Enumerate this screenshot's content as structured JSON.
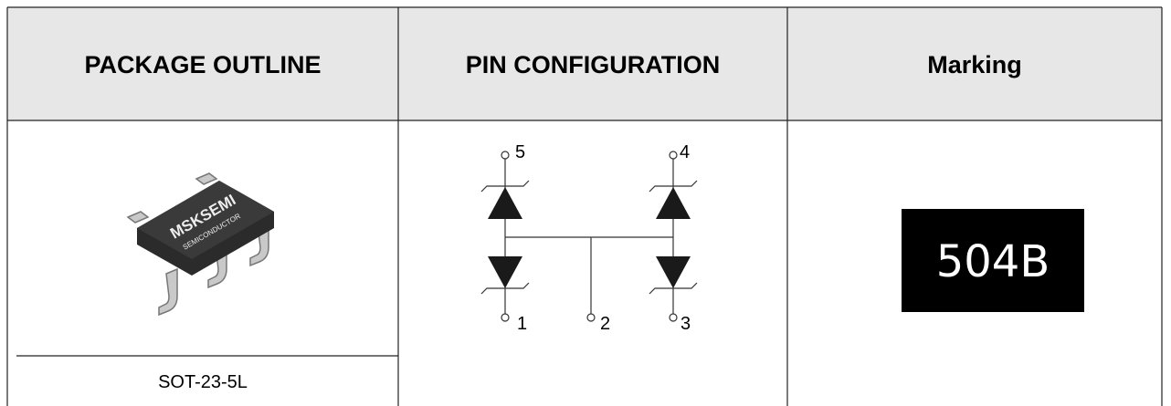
{
  "header": {
    "columns": [
      "PACKAGE OUTLINE",
      "PIN CONFIGURATION",
      "Marking"
    ]
  },
  "package": {
    "name": "SOT-23-5L",
    "chip_text": [
      "MSKSEMI",
      "SEMICONDUCTOR"
    ]
  },
  "pins": {
    "labels": [
      "5",
      "4",
      "1",
      "2",
      "3"
    ]
  },
  "marking": {
    "text": "504B"
  }
}
